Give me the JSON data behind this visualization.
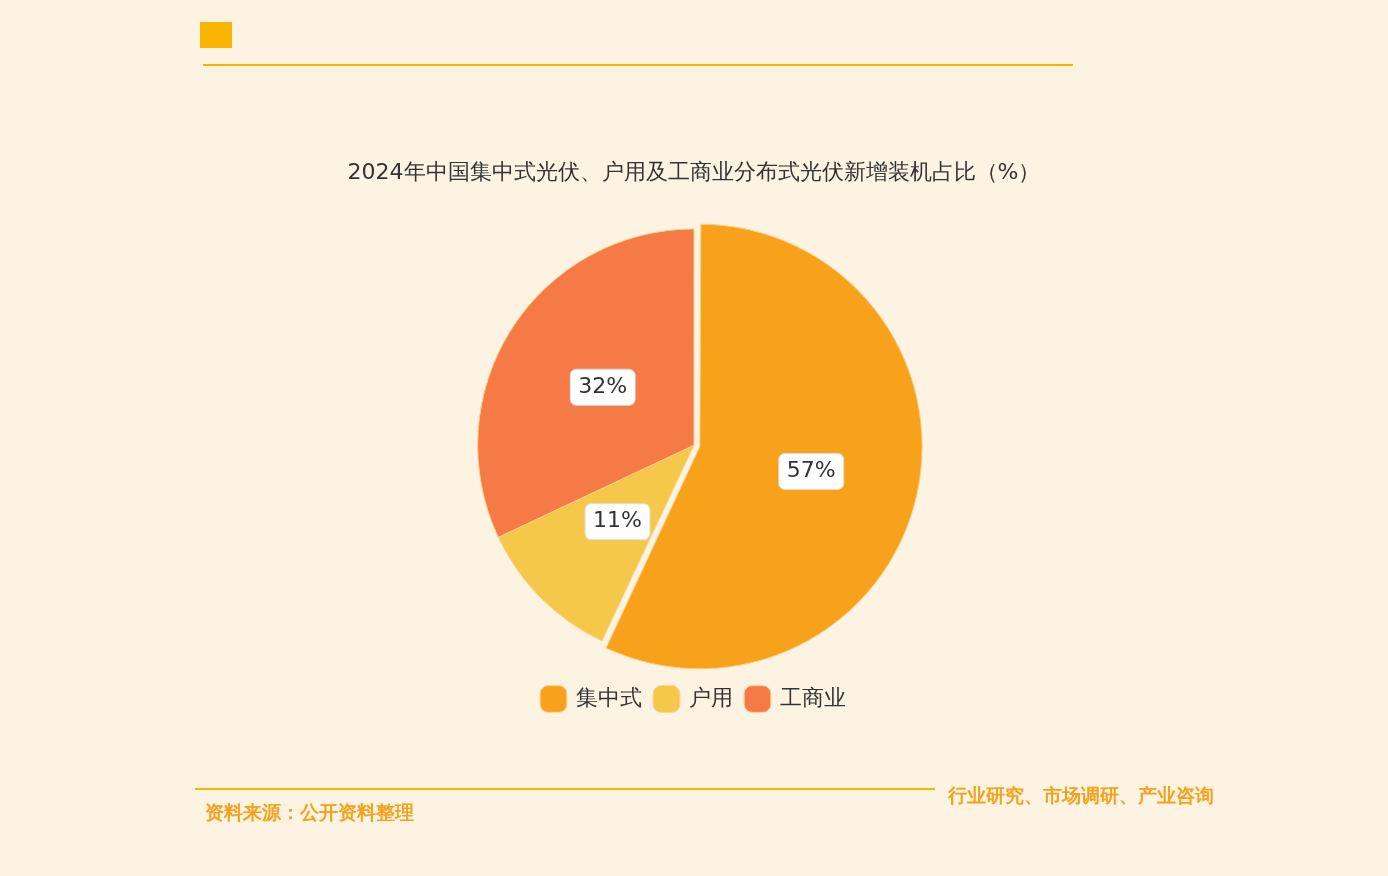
{
  "chart_data": {
    "type": "pie",
    "title": "2024年中国集中式光伏、户用及工商业分布式光伏新增装机占比（%）",
    "categories": [
      "集中式",
      "户用",
      "工商业"
    ],
    "values": [
      57,
      11,
      32
    ],
    "value_labels": [
      "57%",
      "11%",
      "32%"
    ],
    "colors": [
      "#f8a21c",
      "#f6c84a",
      "#f57a45"
    ],
    "legend": "bottom",
    "annotations": [
      "资料来源：公开资料整理",
      "行业研究、市场调研、产业咨询"
    ]
  }
}
